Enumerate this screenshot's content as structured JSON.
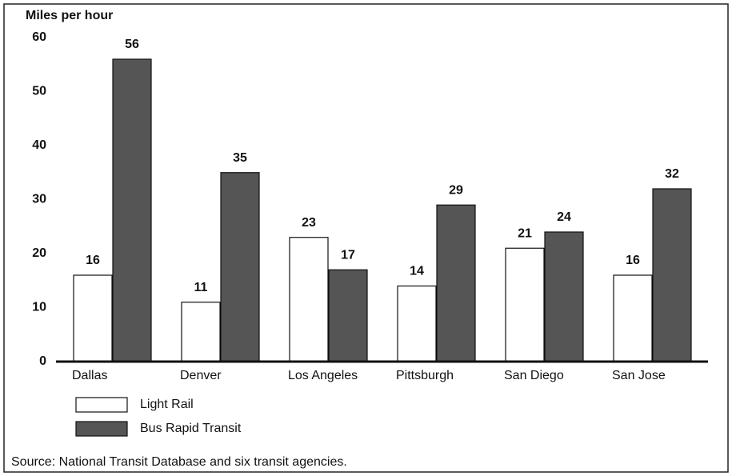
{
  "chart_data": {
    "type": "bar",
    "y_axis_label": "Miles per hour",
    "categories": [
      "Dallas",
      "Denver",
      "Los Angeles",
      "Pittsburgh",
      "San Diego",
      "San Jose"
    ],
    "series": [
      {
        "name": "Light Rail",
        "color": "#ffffff",
        "values": [
          16,
          11,
          23,
          14,
          21,
          16
        ]
      },
      {
        "name": "Bus Rapid Transit",
        "color": "#555555",
        "values": [
          56,
          35,
          17,
          29,
          24,
          32
        ]
      }
    ],
    "ylim": [
      0,
      60
    ],
    "yticks": [
      0,
      10,
      20,
      30,
      40,
      50,
      60
    ],
    "grid": false,
    "legend": "bottom-left",
    "source": "Source: National Transit Database and six transit agencies."
  }
}
